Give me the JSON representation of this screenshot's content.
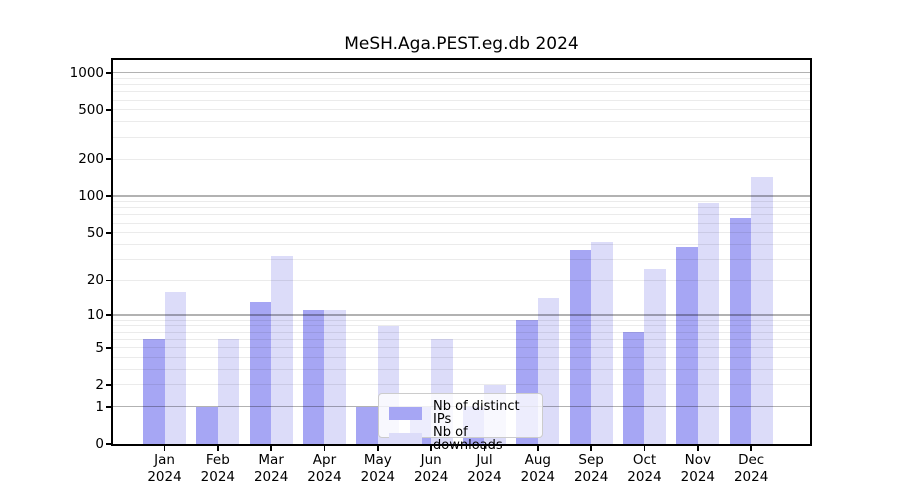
{
  "figure": {
    "title": "MeSH.Aga.PEST.eg.db 2024"
  },
  "chart_data": {
    "type": "bar",
    "title": "MeSH.Aga.PEST.eg.db 2024",
    "categories": [
      "Jan",
      "Feb",
      "Mar",
      "Apr",
      "May",
      "Jun",
      "Jul",
      "Aug",
      "Sep",
      "Oct",
      "Nov",
      "Dec"
    ],
    "category_year": "2024",
    "series": [
      {
        "name": "Nb of distinct IPs",
        "color": "#a6a6f4",
        "values": [
          6,
          1,
          13,
          11,
          1,
          1,
          1,
          9,
          36,
          7,
          38,
          66
        ]
      },
      {
        "name": "Nb of downloads",
        "color": "#dcdcf9",
        "values": [
          16,
          6,
          32,
          11,
          8,
          6,
          2,
          14,
          42,
          25,
          88,
          144
        ]
      }
    ],
    "yscale": "log10(1+x)",
    "yticks": [
      1000,
      500,
      200,
      100,
      50,
      20,
      10,
      5,
      2,
      1,
      0
    ],
    "ylim": [
      0,
      1268
    ],
    "grid": true,
    "legend_position": "inside-bottom-center",
    "xlabel": "",
    "ylabel": ""
  }
}
